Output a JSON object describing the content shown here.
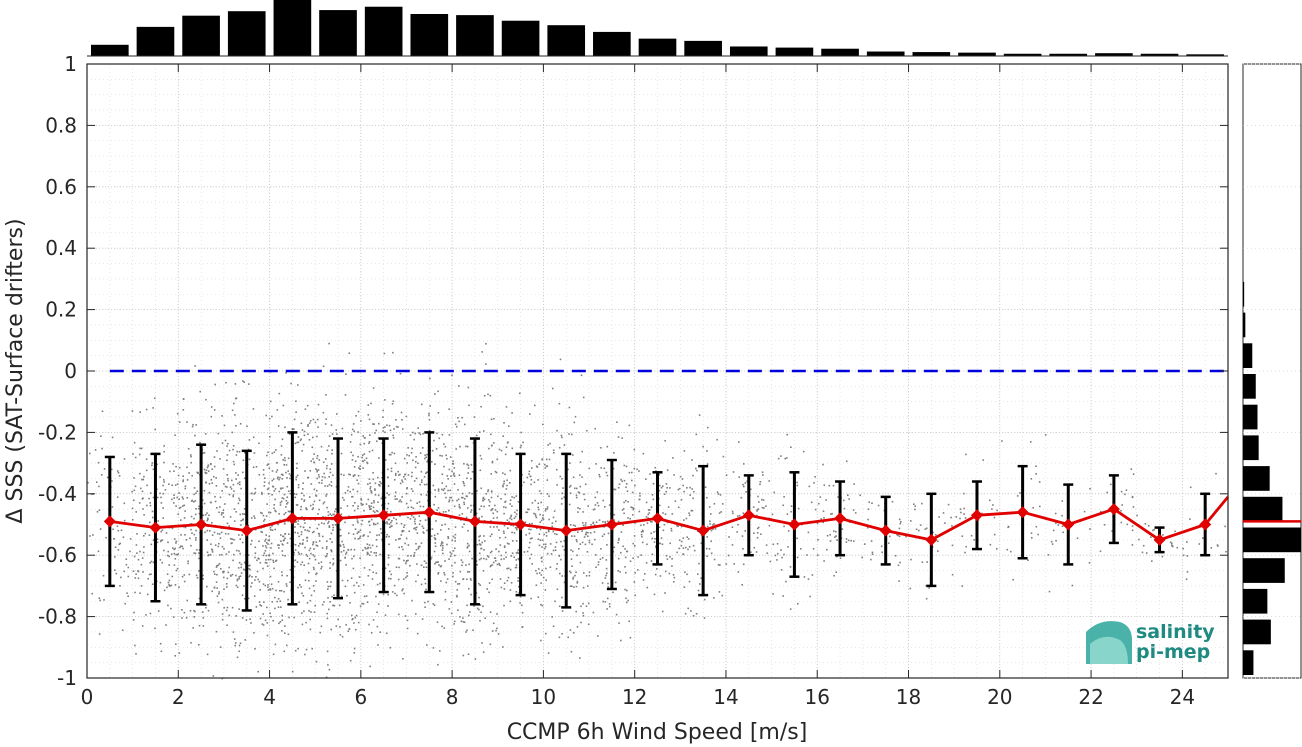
{
  "chart_data": {
    "type": "scatter",
    "xlabel": "CCMP 6h Wind Speed [m/s]",
    "ylabel": "Δ SSS (SAT-Surface drifters)",
    "xlim": [
      0,
      25
    ],
    "ylim": [
      -1,
      1
    ],
    "x_ticks": [
      0,
      2,
      4,
      6,
      8,
      10,
      12,
      14,
      16,
      18,
      20,
      22,
      24
    ],
    "y_ticks": [
      -1,
      -0.8,
      -0.6,
      -0.4,
      -0.2,
      0,
      0.2,
      0.4,
      0.6,
      0.8,
      1
    ],
    "x_tick_labels": [
      "0",
      "2",
      "4",
      "6",
      "8",
      "10",
      "12",
      "14",
      "16",
      "18",
      "20",
      "22",
      "24"
    ],
    "y_tick_labels": [
      "-1",
      "-0.8",
      "-0.6",
      "-0.4",
      "-0.2",
      "0",
      "0.2",
      "0.4",
      "0.6",
      "0.8",
      "1"
    ],
    "grid": true,
    "reference_line": {
      "y": 0,
      "color": "#0000dd",
      "style": "dashed"
    },
    "binned_mean": {
      "color": "#e00000",
      "x": [
        0.5,
        1.5,
        2.5,
        3.5,
        4.5,
        5.5,
        6.5,
        7.5,
        8.5,
        9.5,
        10.5,
        11.5,
        12.5,
        13.5,
        14.5,
        15.5,
        16.5,
        17.5,
        18.5,
        19.5,
        20.5,
        21.5,
        22.5,
        23.5,
        24.5
      ],
      "mean": [
        -0.49,
        -0.51,
        -0.5,
        -0.52,
        -0.48,
        -0.48,
        -0.47,
        -0.46,
        -0.49,
        -0.5,
        -0.52,
        -0.5,
        -0.48,
        -0.52,
        -0.47,
        -0.5,
        -0.48,
        -0.52,
        -0.55,
        -0.47,
        -0.46,
        -0.5,
        -0.45,
        -0.55,
        -0.5
      ],
      "std": [
        0.21,
        0.24,
        0.26,
        0.26,
        0.28,
        0.26,
        0.25,
        0.26,
        0.27,
        0.23,
        0.25,
        0.21,
        0.15,
        0.21,
        0.13,
        0.17,
        0.12,
        0.11,
        0.15,
        0.11,
        0.15,
        0.13,
        0.11,
        0.04,
        0.1
      ],
      "end_point": {
        "x": 25,
        "y": -0.41
      }
    },
    "scatter_color": "#7f7f7f",
    "top_histogram": {
      "bins_x": [
        0.5,
        1.5,
        2.5,
        3.5,
        4.5,
        5.5,
        6.5,
        7.5,
        8.5,
        9.5,
        10.5,
        11.5,
        12.5,
        13.5,
        14.5,
        15.5,
        16.5,
        17.5,
        18.5,
        19.5,
        20.5,
        21.5,
        22.5,
        23.5,
        24.5
      ],
      "relative_counts": [
        0.2,
        0.52,
        0.72,
        0.8,
        1.0,
        0.82,
        0.88,
        0.75,
        0.73,
        0.63,
        0.55,
        0.43,
        0.31,
        0.27,
        0.17,
        0.15,
        0.13,
        0.08,
        0.07,
        0.06,
        0.04,
        0.04,
        0.05,
        0.04,
        0.03
      ]
    },
    "right_histogram": {
      "bins_y": [
        -0.95,
        -0.85,
        -0.75,
        -0.65,
        -0.55,
        -0.45,
        -0.35,
        -0.25,
        -0.15,
        -0.05,
        0.05,
        0.15,
        0.25
      ],
      "relative_counts": [
        0.18,
        0.48,
        0.42,
        0.72,
        1.0,
        0.68,
        0.46,
        0.27,
        0.25,
        0.22,
        0.16,
        0.04,
        0.02
      ],
      "mean_line_y": -0.49
    }
  },
  "logo": {
    "line1": "salinity",
    "line2": "pi-mep"
  }
}
